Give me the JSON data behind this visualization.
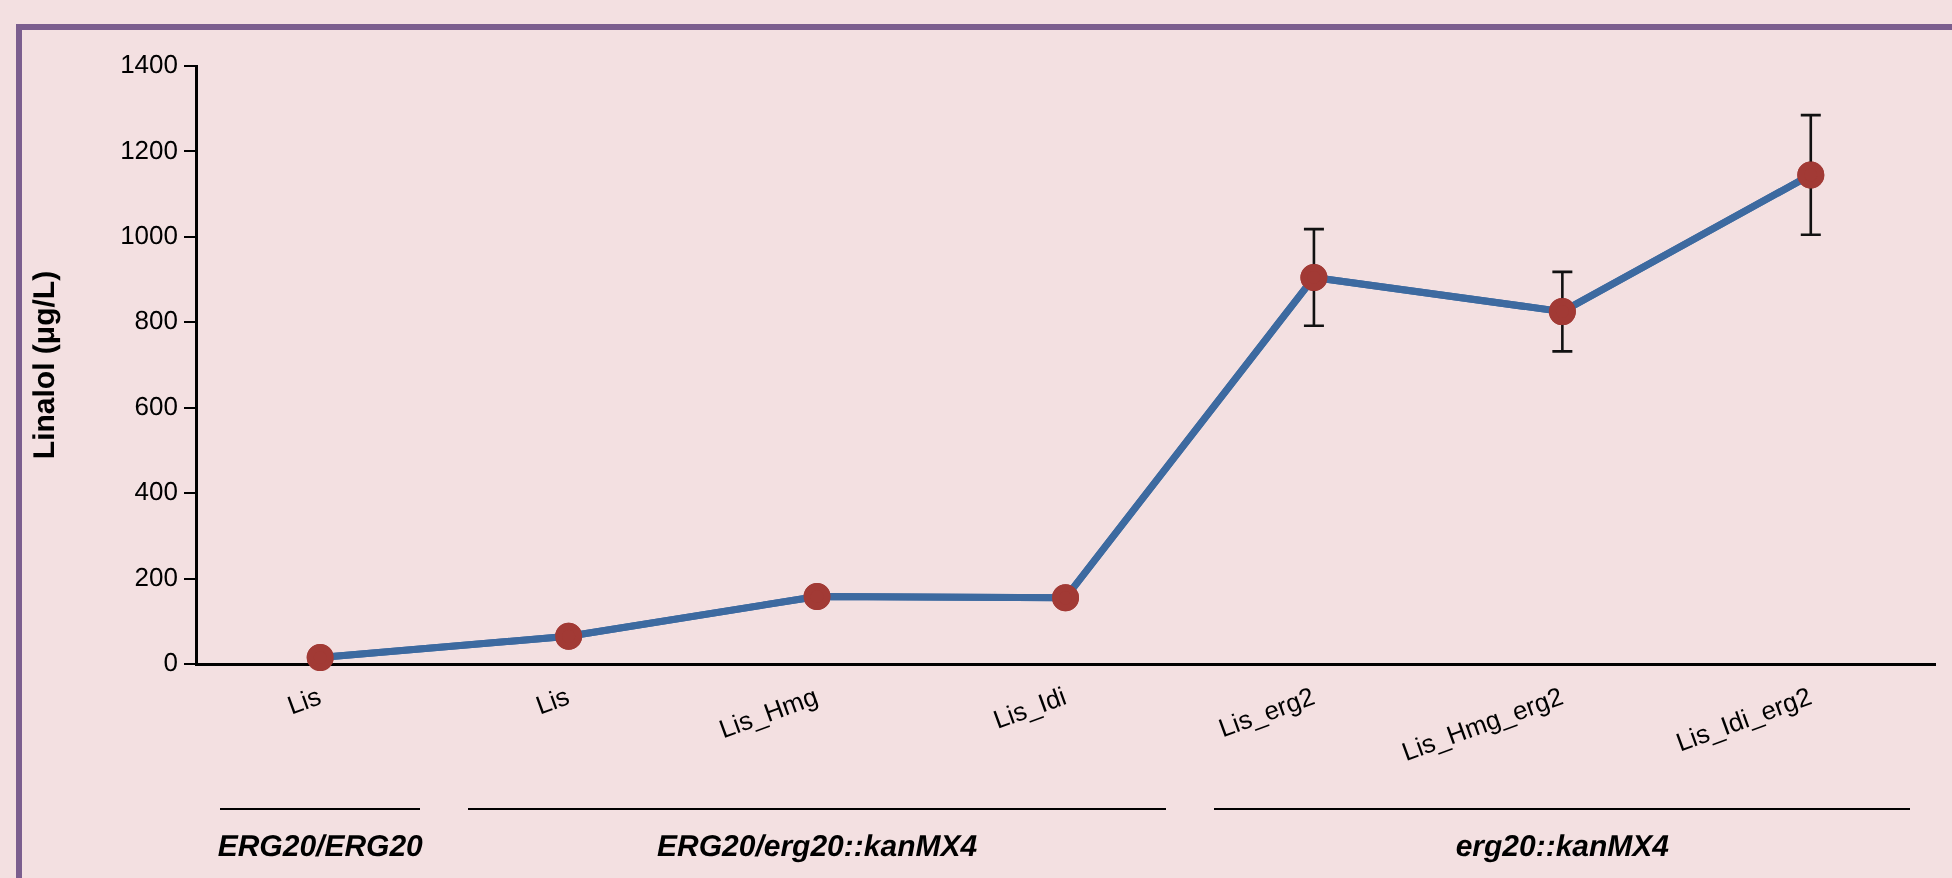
{
  "chart_data": {
    "type": "line",
    "ylabel": "Linalol (μg/L)",
    "categories": [
      "Lis",
      "Lis",
      "Lis_Hmg",
      "Lis_Idi",
      "Lis_erg2",
      "Lis_Hmg_erg2",
      "Lis_Idi_erg2"
    ],
    "series": [
      {
        "color": "#3d6aa0",
        "colors": [
          "#a23a35",
          "#a23a35",
          "#a23a35",
          "#a23a35",
          "#a23a35",
          "#a23a35",
          "#a23a35"
        ],
        "values": [
          15,
          65,
          158,
          155,
          905,
          825,
          1145
        ],
        "errors": [
          null,
          null,
          null,
          null,
          113,
          93,
          140
        ]
      }
    ],
    "ylim": [
      0,
      1400
    ],
    "yticks": [
      0,
      200,
      400,
      600,
      800,
      1000,
      1200,
      1400
    ],
    "grid": false,
    "legend": false,
    "marker": "circle",
    "line_style": "solid",
    "annotations": [
      "ERG20/ERG20",
      "ERG20/erg20::kanMX4",
      "erg20::kanMX4"
    ]
  }
}
